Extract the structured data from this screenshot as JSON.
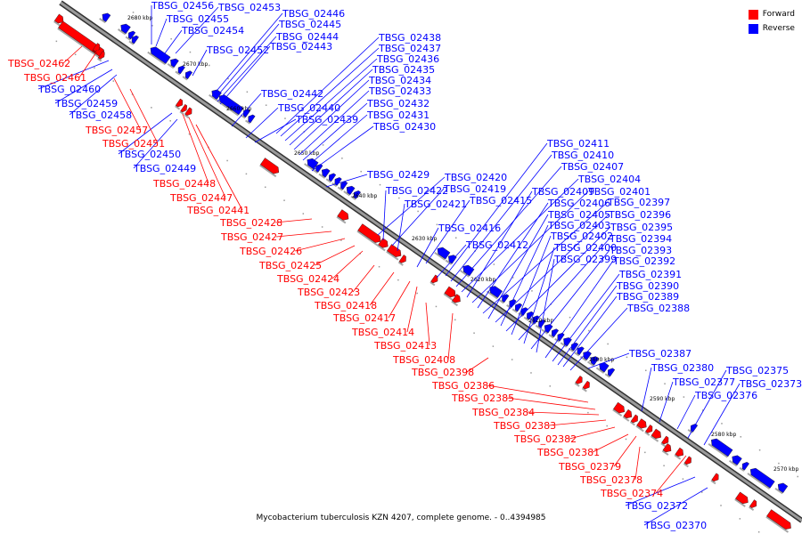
{
  "caption": "Mycobacterium tuberculosis KZN 4207, complete genome. - 0..4394985",
  "legend": [
    {
      "label": "Forward",
      "color": "#ff0000"
    },
    {
      "label": "Reverse",
      "color": "#0000ff"
    }
  ],
  "colors": {
    "forward": "#ff0000",
    "reverse": "#0000ff",
    "backbone": "#777777"
  },
  "ticks": [
    "2680 kbp",
    "2670 kbp",
    "2660 kbp",
    "2650 kbp",
    "2640 kbp",
    "2630 kbp",
    "2620 kbp",
    "2610 kbp",
    "2600 kbp",
    "2590 kbp",
    "2580 kbp",
    "2570 kbp"
  ],
  "reverse_labels": [
    "TBSG_02456",
    "TBSG_02455",
    "TBSG_02454",
    "TBSG_02453",
    "TBSG_02452",
    "TBSG_02446",
    "TBSG_02445",
    "TBSG_02444",
    "TBSG_02443",
    "TBSG_02438",
    "TBSG_02437",
    "TBSG_02436",
    "TBSG_02435",
    "TBSG_02434",
    "TBSG_02433",
    "TBSG_02442",
    "TBSG_02432",
    "TBSG_02440",
    "TBSG_02431",
    "TBSG_02439",
    "TBSG_02430",
    "TBSG_02460",
    "TBSG_02459",
    "TBSG_02458",
    "TBSG_02450",
    "TBSG_02449",
    "TBSG_02411",
    "TBSG_02410",
    "TBSG_02407",
    "TBSG_02404",
    "TBSG_02409",
    "TBSG_02401",
    "TBSG_02406",
    "TBSG_02397",
    "TBSG_02405",
    "TBSG_02396",
    "TBSG_02403",
    "TBSG_02395",
    "TBSG_02402",
    "TBSG_02394",
    "TBSG_02400",
    "TBSG_02393",
    "TBSG_02399",
    "TBSG_02392",
    "TBSG_02391",
    "TBSG_02390",
    "TBSG_02389",
    "TBSG_02388",
    "TBSG_02429",
    "TBSG_02420",
    "TBSG_02422",
    "TBSG_02419",
    "TBSG_02415",
    "TBSG_02421",
    "TBSG_02416",
    "TBSG_02412",
    "TBSG_02387",
    "TBSG_02380",
    "TBSG_02375",
    "TBSG_02377",
    "TBSG_02373",
    "TBSG_02376",
    "TBSG_02372",
    "TBSG_02370"
  ],
  "forward_labels": [
    "TBSG_02462",
    "TBSG_02461",
    "TBSG_02457",
    "TBSG_02451",
    "TBSG_02448",
    "TBSG_02447",
    "TBSG_02441",
    "TBSG_02428",
    "TBSG_02427",
    "TBSG_02426",
    "TBSG_02425",
    "TBSG_02424",
    "TBSG_02423",
    "TBSG_02418",
    "TBSG_02417",
    "TBSG_02414",
    "TBSG_02413",
    "TBSG_02408",
    "TBSG_02398",
    "TBSG_02386",
    "TBSG_02385",
    "TBSG_02384",
    "TBSG_02383",
    "TBSG_02382",
    "TBSG_02381",
    "TBSG_02379",
    "TBSG_02378",
    "TBSG_02374"
  ]
}
